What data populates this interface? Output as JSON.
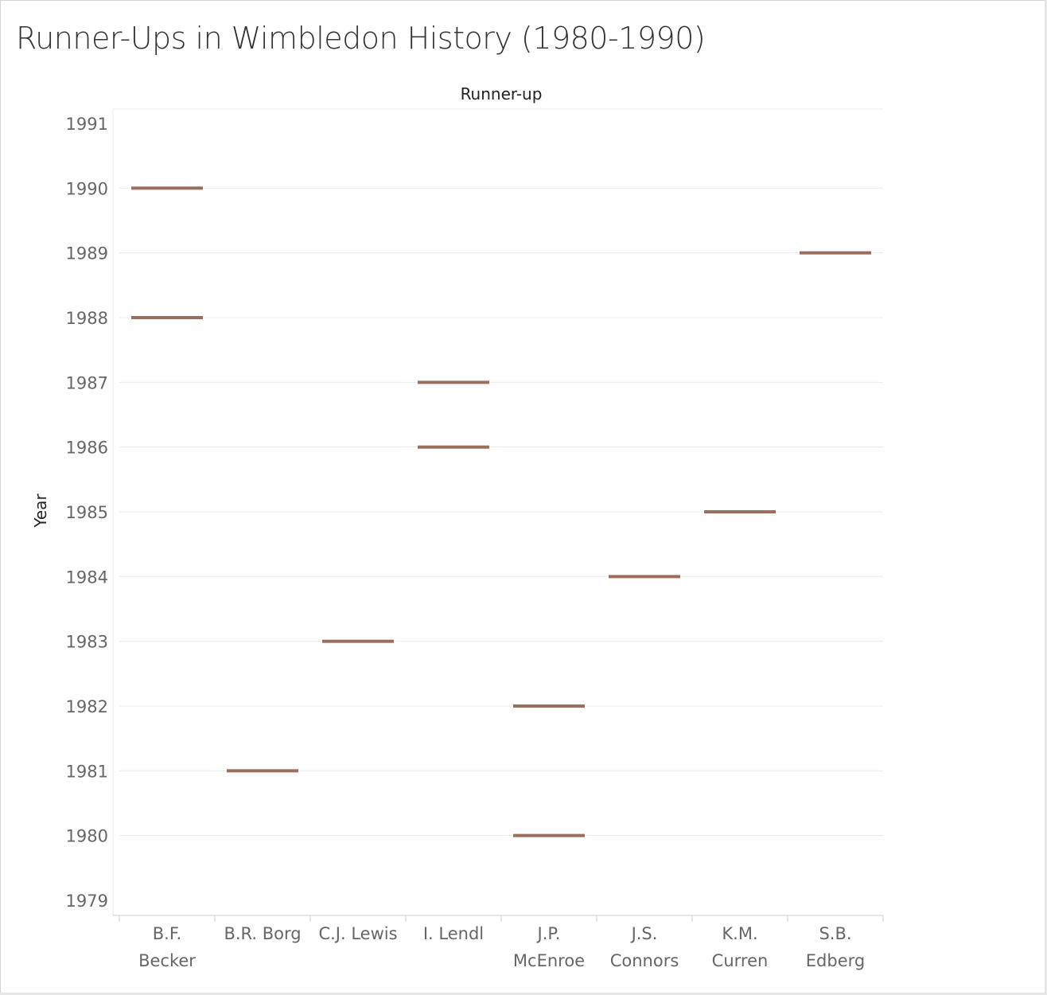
{
  "title": "Runner-Ups in Wimbledon History (1980-1990)",
  "colors": {
    "mark": "#9b6f5c",
    "grid": "#ebebeb",
    "axis": "#cfcfcf",
    "text": "#666666"
  },
  "chart_data": {
    "type": "gantt",
    "title": "Runner-Ups in Wimbledon History (1980-1990)",
    "column_header": "Runner-up",
    "ylabel": "Year",
    "ylim": [
      1979,
      1991
    ],
    "yticks": [
      1979,
      1980,
      1981,
      1982,
      1983,
      1984,
      1985,
      1986,
      1987,
      1988,
      1989,
      1990,
      1991
    ],
    "categories": [
      [
        "B.F.",
        "Becker"
      ],
      [
        "B.R. Borg"
      ],
      [
        "C.J. Lewis"
      ],
      [
        "I. Lendl"
      ],
      [
        "J.P.",
        "McEnroe"
      ],
      [
        "J.S.",
        "Connors"
      ],
      [
        "K.M.",
        "Curren"
      ],
      [
        "S.B.",
        "Edberg"
      ]
    ],
    "points": [
      {
        "category": 0,
        "year": 1988
      },
      {
        "category": 0,
        "year": 1990
      },
      {
        "category": 1,
        "year": 1981
      },
      {
        "category": 2,
        "year": 1983
      },
      {
        "category": 3,
        "year": 1986
      },
      {
        "category": 3,
        "year": 1987
      },
      {
        "category": 4,
        "year": 1980
      },
      {
        "category": 4,
        "year": 1982
      },
      {
        "category": 5,
        "year": 1984
      },
      {
        "category": 6,
        "year": 1985
      },
      {
        "category": 7,
        "year": 1989
      }
    ]
  }
}
